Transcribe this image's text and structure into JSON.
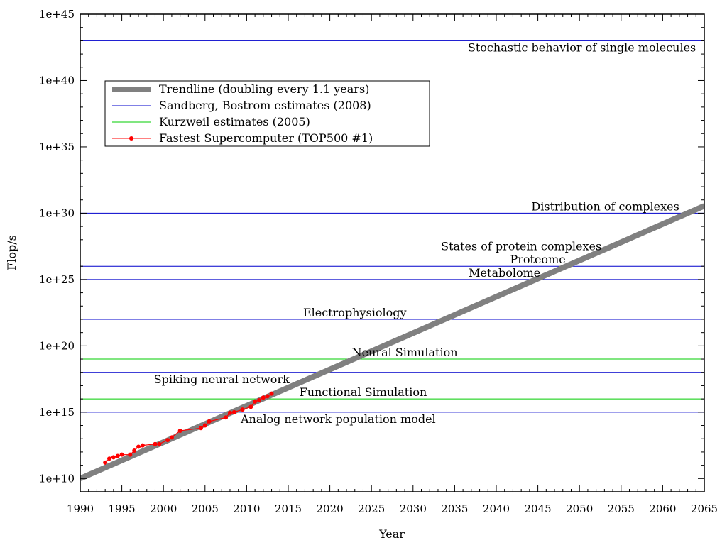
{
  "chart_data": {
    "type": "line",
    "xlabel": "Year",
    "ylabel": "Flop/s",
    "xlim": [
      1990,
      2065
    ],
    "ylim_log10": [
      9,
      45
    ],
    "y_scale": "log",
    "x_ticks": [
      1990,
      1995,
      2000,
      2005,
      2010,
      2015,
      2020,
      2025,
      2030,
      2035,
      2040,
      2045,
      2050,
      2055,
      2060,
      2065
    ],
    "x_tick_labels": [
      "1990",
      "1995",
      "2000",
      "2005",
      "2010",
      "2015",
      "2020",
      "2025",
      "2030",
      "2035",
      "2040",
      "2045",
      "2050",
      "2055",
      "2060",
      "2065"
    ],
    "y_ticks_log10": [
      10,
      15,
      20,
      25,
      30,
      35,
      40,
      45
    ],
    "y_tick_labels": [
      "1e+10",
      "1e+15",
      "1e+20",
      "1e+25",
      "1e+30",
      "1e+35",
      "1e+40",
      "1e+45"
    ],
    "legend": {
      "position": "top-left",
      "entries": [
        {
          "label": "Trendline (doubling every 1.1 years)",
          "color": "#808080",
          "style": "thick-line"
        },
        {
          "label": "Sandberg, Bostrom estimates (2008)",
          "color": "#0000cc",
          "style": "line"
        },
        {
          "label": "Kurzweil estimates (2005)",
          "color": "#00cc00",
          "style": "line"
        },
        {
          "label": "Fastest Supercomputer (TOP500 #1)",
          "color": "#ff0000",
          "style": "line-points"
        }
      ]
    },
    "trendline": {
      "color": "#808080",
      "x": [
        1990,
        2065
      ],
      "y_log10": [
        10.0,
        30.55
      ]
    },
    "reference_lines": [
      {
        "y_log10": 43,
        "series": "sandberg",
        "label": "Stochastic behavior of single molecules",
        "label_x": 2064,
        "label_pos": "below",
        "anchor": "end"
      },
      {
        "y_log10": 30,
        "series": "sandberg",
        "label": "Distribution of complexes",
        "label_x": 2062,
        "label_pos": "above",
        "anchor": "end"
      },
      {
        "y_log10": 27,
        "series": "sandberg",
        "label": "States of protein complexes",
        "label_x": 2043,
        "label_pos": "above",
        "anchor": "middle"
      },
      {
        "y_log10": 26,
        "series": "sandberg",
        "label": "Proteome",
        "label_x": 2045,
        "label_pos": "above",
        "anchor": "middle"
      },
      {
        "y_log10": 25,
        "series": "sandberg",
        "label": "Metabolome",
        "label_x": 2041,
        "label_pos": "above",
        "anchor": "middle"
      },
      {
        "y_log10": 22,
        "series": "sandberg",
        "label": "Electrophysiology",
        "label_x": 2023,
        "label_pos": "above",
        "anchor": "middle"
      },
      {
        "y_log10": 18,
        "series": "sandberg",
        "label": "Spiking neural network",
        "label_x": 2007,
        "label_pos": "below",
        "anchor": "middle"
      },
      {
        "y_log10": 15,
        "series": "sandberg",
        "label": "Analog network population model",
        "label_x": 2021,
        "label_pos": "below",
        "anchor": "middle"
      },
      {
        "y_log10": 19,
        "series": "kurzweil",
        "label": "Neural Simulation",
        "label_x": 2029,
        "label_pos": "above",
        "anchor": "middle"
      },
      {
        "y_log10": 16,
        "series": "kurzweil",
        "label": "Functional Simulation",
        "label_x": 2024,
        "label_pos": "above",
        "anchor": "middle"
      }
    ],
    "series": [
      {
        "name": "Fastest Supercomputer (TOP500 #1)",
        "color": "#ff0000",
        "x": [
          1993.0,
          1993.5,
          1994.0,
          1994.5,
          1995.0,
          1996.0,
          1996.5,
          1997.0,
          1997.5,
          1999.0,
          1999.5,
          2000.5,
          2001.0,
          2002.0,
          2004.5,
          2005.0,
          2005.5,
          2007.5,
          2008.0,
          2008.5,
          2009.5,
          2010.5,
          2011.0,
          2011.5,
          2012.0,
          2012.5,
          2013.0
        ],
        "y_log10": [
          11.2,
          11.5,
          11.6,
          11.7,
          11.8,
          11.8,
          12.1,
          12.4,
          12.5,
          12.6,
          12.6,
          12.9,
          13.1,
          13.6,
          13.8,
          14.0,
          14.3,
          14.6,
          14.95,
          15.0,
          15.2,
          15.4,
          15.8,
          15.9,
          16.1,
          16.2,
          16.4
        ]
      }
    ],
    "colors": {
      "sandberg": "#0000cc",
      "kurzweil": "#00cc00",
      "top500": "#ff0000",
      "trend": "#808080"
    }
  }
}
